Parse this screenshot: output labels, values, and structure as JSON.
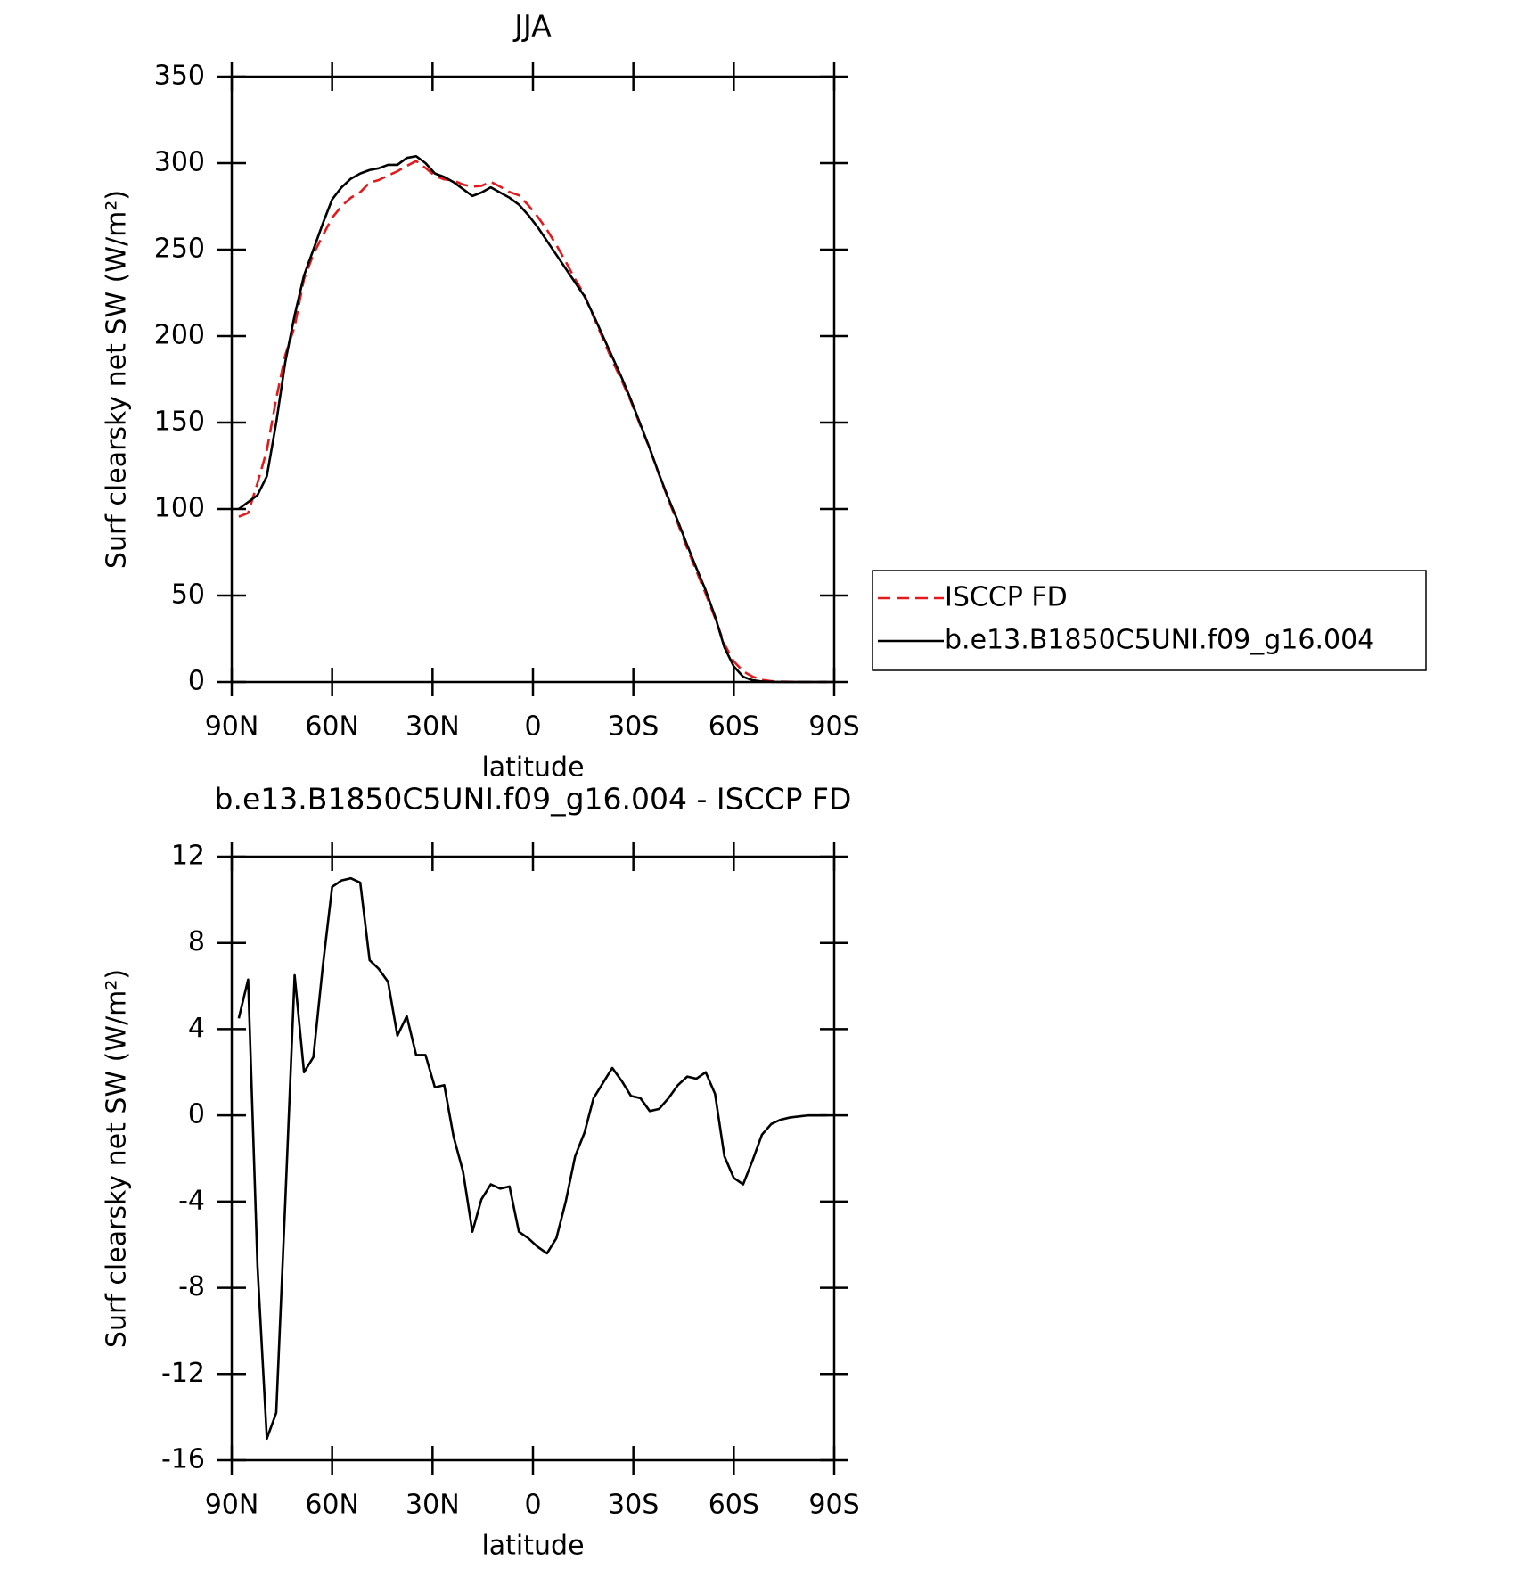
{
  "chart_data": [
    {
      "type": "line",
      "title": "JJA",
      "xlabel": "latitude",
      "ylabel": "Surf clearsky net SW (W/m²)",
      "x": [
        87.9,
        85.1,
        82.3,
        79.5,
        76.7,
        74.0,
        71.2,
        68.4,
        65.6,
        62.8,
        60.0,
        57.2,
        54.4,
        51.6,
        48.8,
        46.1,
        43.3,
        40.5,
        37.7,
        34.9,
        32.1,
        29.3,
        26.5,
        23.7,
        20.9,
        18.1,
        15.4,
        12.6,
        9.8,
        7.0,
        4.2,
        1.4,
        -1.4,
        -4.2,
        -7.0,
        -9.8,
        -12.6,
        -15.4,
        -18.1,
        -20.9,
        -23.7,
        -26.5,
        -29.3,
        -32.1,
        -34.9,
        -37.7,
        -40.5,
        -43.3,
        -46.1,
        -48.8,
        -51.6,
        -54.4,
        -57.2,
        -60.0,
        -62.8,
        -65.6,
        -68.4,
        -71.2,
        -74.0,
        -76.7,
        -79.5,
        -82.3,
        -85.1,
        -87.9
      ],
      "series": [
        {
          "name": "ISCCP FD",
          "color": "#e31a1c",
          "linestyle": "dashed",
          "values": [
            95.5,
            97.7,
            115,
            134,
            163.8,
            189,
            205.5,
            233,
            247.3,
            258.1,
            268.4,
            275.1,
            280,
            283.2,
            288.8,
            290.2,
            292.8,
            295.3,
            298.4,
            301.2,
            297.2,
            292.7,
            290.6,
            290,
            287.6,
            286.4,
            286.9,
            289.2,
            286.4,
            283.3,
            281.4,
            275.7,
            269.1,
            261.4,
            252.7,
            243,
            232.9,
            223.8,
            211.2,
            198.5,
            185.8,
            174.4,
            162.1,
            148.2,
            134.8,
            119.7,
            105.2,
            91.6,
            77.2,
            64.3,
            51,
            37,
            21.9,
            11.9,
            6.2,
            3.1,
            1.2,
            0.5,
            0.2,
            0.1,
            0.05,
            0,
            0,
            0
          ]
        },
        {
          "name": "b.e13.B1850C5UNI.f09_g16.004",
          "color": "#000000",
          "linestyle": "solid",
          "values": [
            100,
            104,
            108,
            119,
            150,
            185,
            212,
            235,
            250,
            265,
            279,
            286,
            291,
            294,
            296,
            297,
            299,
            299,
            303,
            304,
            300,
            294,
            292,
            289,
            285,
            281,
            283,
            286,
            283,
            280,
            276,
            270,
            263,
            255,
            247,
            239,
            231,
            223,
            212,
            200,
            188,
            176,
            163,
            149,
            135,
            120,
            106,
            93,
            79,
            66,
            53,
            38,
            20,
            9,
            3,
            1,
            0.3,
            0.1,
            0,
            0,
            0,
            0,
            0,
            0
          ]
        }
      ],
      "xlim": [
        90,
        -90
      ],
      "xticks": [
        {
          "value": 90,
          "label": "90N"
        },
        {
          "value": 60,
          "label": "60N"
        },
        {
          "value": 30,
          "label": "30N"
        },
        0,
        {
          "value": -30,
          "label": "30S"
        },
        {
          "value": -60,
          "label": "60S"
        },
        {
          "value": -90,
          "label": "90S"
        }
      ],
      "ylim": [
        0,
        350
      ],
      "yticks": [
        0,
        50,
        100,
        150,
        200,
        250,
        300,
        350
      ],
      "legend": "right"
    },
    {
      "type": "line",
      "title": "b.e13.B1850C5UNI.f09_g16.004 - ISCCP FD",
      "xlabel": "latitude",
      "ylabel": "Surf clearsky net SW (W/m²)",
      "x": [
        87.9,
        85.1,
        82.3,
        79.5,
        76.7,
        74.0,
        71.2,
        68.4,
        65.6,
        62.8,
        60.0,
        57.2,
        54.4,
        51.6,
        48.8,
        46.1,
        43.3,
        40.5,
        37.7,
        34.9,
        32.1,
        29.3,
        26.5,
        23.7,
        20.9,
        18.1,
        15.4,
        12.6,
        9.8,
        7.0,
        4.2,
        1.4,
        -1.4,
        -4.2,
        -7.0,
        -9.8,
        -12.6,
        -15.4,
        -18.1,
        -20.9,
        -23.7,
        -26.5,
        -29.3,
        -32.1,
        -34.9,
        -37.7,
        -40.5,
        -43.3,
        -46.1,
        -48.8,
        -51.6,
        -54.4,
        -57.2,
        -60.0,
        -62.8,
        -65.6,
        -68.4,
        -71.2,
        -74.0,
        -76.7,
        -79.5,
        -82.3,
        -85.1,
        -87.9
      ],
      "series": [
        {
          "color": "#000000",
          "linestyle": "solid",
          "values": [
            4.5,
            6.3,
            -7,
            -15,
            -13.8,
            -4,
            6.5,
            2,
            2.7,
            6.9,
            10.6,
            10.9,
            11,
            10.8,
            7.2,
            6.8,
            6.2,
            3.7,
            4.6,
            2.8,
            2.8,
            1.3,
            1.4,
            -1,
            -2.6,
            -5.4,
            -3.9,
            -3.2,
            -3.4,
            -3.3,
            -5.4,
            -5.7,
            -6.1,
            -6.4,
            -5.7,
            -4,
            -1.9,
            -0.8,
            0.8,
            1.5,
            2.2,
            1.6,
            0.9,
            0.8,
            0.2,
            0.3,
            0.8,
            1.4,
            1.8,
            1.7,
            2,
            1,
            -1.9,
            -2.9,
            -3.2,
            -2.1,
            -0.9,
            -0.4,
            -0.2,
            -0.1,
            -0.05,
            0,
            0,
            0
          ]
        }
      ],
      "xlim": [
        90,
        -90
      ],
      "xticks": [
        {
          "value": 90,
          "label": "90N"
        },
        {
          "value": 60,
          "label": "60N"
        },
        {
          "value": 30,
          "label": "30N"
        },
        0,
        {
          "value": -30,
          "label": "30S"
        },
        {
          "value": -60,
          "label": "60S"
        },
        {
          "value": -90,
          "label": "90S"
        }
      ],
      "ylim": [
        -16,
        12
      ],
      "yticks": [
        -16,
        -12,
        -8,
        -4,
        0,
        4,
        8,
        12
      ]
    }
  ]
}
